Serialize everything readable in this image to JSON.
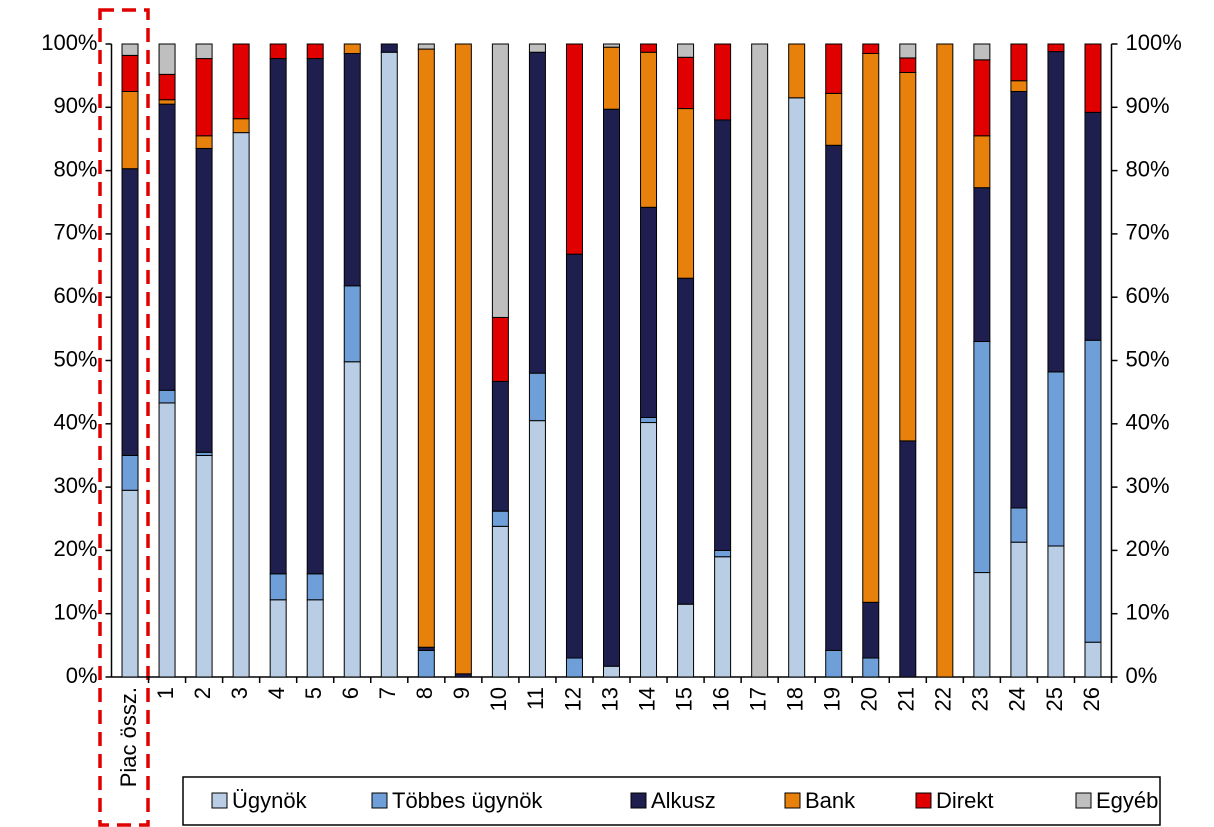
{
  "chart_data": {
    "type": "stacked_bar",
    "categories": [
      "Piac össz.",
      "1",
      "2",
      "3",
      "4",
      "5",
      "6",
      "7",
      "8",
      "9",
      "10",
      "11",
      "12",
      "13",
      "14",
      "15",
      "16",
      "17",
      "18",
      "19",
      "20",
      "21",
      "22",
      "23",
      "24",
      "25",
      "26"
    ],
    "series": [
      {
        "name": "Ügynök",
        "color": "#b9cde5",
        "values": [
          29.5,
          43.3,
          35,
          86,
          12.2,
          12.2,
          49.8,
          98.7,
          0,
          0,
          23.8,
          40.5,
          0,
          1.7,
          40.2,
          11.5,
          19,
          0,
          91.5,
          0,
          0,
          0,
          0,
          16.5,
          21.3,
          20.7,
          5.5
        ]
      },
      {
        "name": "Többes ügynök",
        "color": "#6f9fd8",
        "values": [
          5.5,
          2,
          0.5,
          0,
          4.1,
          4.1,
          12,
          0,
          4.2,
          0,
          2.4,
          7.5,
          3,
          0,
          0.8,
          0,
          1,
          0,
          0,
          4.2,
          3,
          0,
          0,
          36.5,
          5.4,
          27.5,
          47.7
        ]
      },
      {
        "name": "Alkusz",
        "color": "#1f1f4f",
        "values": [
          45.3,
          45.2,
          48,
          0,
          81.4,
          81.4,
          36.7,
          1.3,
          0.5,
          0.5,
          20.5,
          50.7,
          63.8,
          88,
          33.2,
          51.5,
          68,
          0,
          0,
          79.8,
          8.8,
          37.3,
          0,
          24.3,
          65.8,
          50.6,
          36
        ]
      },
      {
        "name": "Bank",
        "color": "#e8800c",
        "values": [
          12.2,
          0.7,
          2,
          2.2,
          0,
          0,
          1.5,
          0,
          94.5,
          99.5,
          0,
          0,
          0,
          9.8,
          24.5,
          26.8,
          0,
          0,
          8.5,
          8.2,
          86.7,
          58.2,
          100,
          8.2,
          1.7,
          0,
          0
        ]
      },
      {
        "name": "Direkt",
        "color": "#e00000",
        "values": [
          5.7,
          4,
          12.2,
          11.8,
          2.3,
          2.3,
          0,
          0,
          0,
          0,
          10.1,
          0,
          33.2,
          0,
          1.3,
          8.1,
          12,
          0,
          0,
          7.8,
          1.5,
          2.3,
          0,
          12,
          5.8,
          1.2,
          10.8
        ]
      },
      {
        "name": "Egyéb",
        "color": "#bfbfbf",
        "values": [
          1.8,
          4.8,
          2.3,
          0,
          0,
          0,
          0,
          0,
          0.8,
          0,
          43.2,
          1.3,
          0,
          0.5,
          0,
          2.1,
          0,
          100,
          0,
          0,
          0,
          2.2,
          0,
          2.5,
          0,
          0,
          0
        ]
      }
    ],
    "ylim": [
      0,
      100
    ],
    "yticks": [
      {
        "value": 0,
        "label": "0%"
      },
      {
        "value": 10,
        "label": "10%"
      },
      {
        "value": 20,
        "label": "20%"
      },
      {
        "value": 30,
        "label": "30%"
      },
      {
        "value": 40,
        "label": "40%"
      },
      {
        "value": 50,
        "label": "50%"
      },
      {
        "value": 60,
        "label": "60%"
      },
      {
        "value": 70,
        "label": "70%"
      },
      {
        "value": 80,
        "label": "80%"
      },
      {
        "value": 90,
        "label": "90%"
      },
      {
        "value": 100,
        "label": "100%"
      }
    ],
    "y2lim": [
      0,
      100
    ],
    "y2ticks": [
      {
        "value": 0,
        "label": "0%"
      },
      {
        "value": 10,
        "label": "10%"
      },
      {
        "value": 20,
        "label": "20%"
      },
      {
        "value": 30,
        "label": "30%"
      },
      {
        "value": 40,
        "label": "40%"
      },
      {
        "value": 50,
        "label": "50%"
      },
      {
        "value": 60,
        "label": "60%"
      },
      {
        "value": 70,
        "label": "70%"
      },
      {
        "value": 80,
        "label": "80%"
      },
      {
        "value": 90,
        "label": "90%"
      },
      {
        "value": 100,
        "label": "100%"
      }
    ],
    "legend": "bottom"
  }
}
